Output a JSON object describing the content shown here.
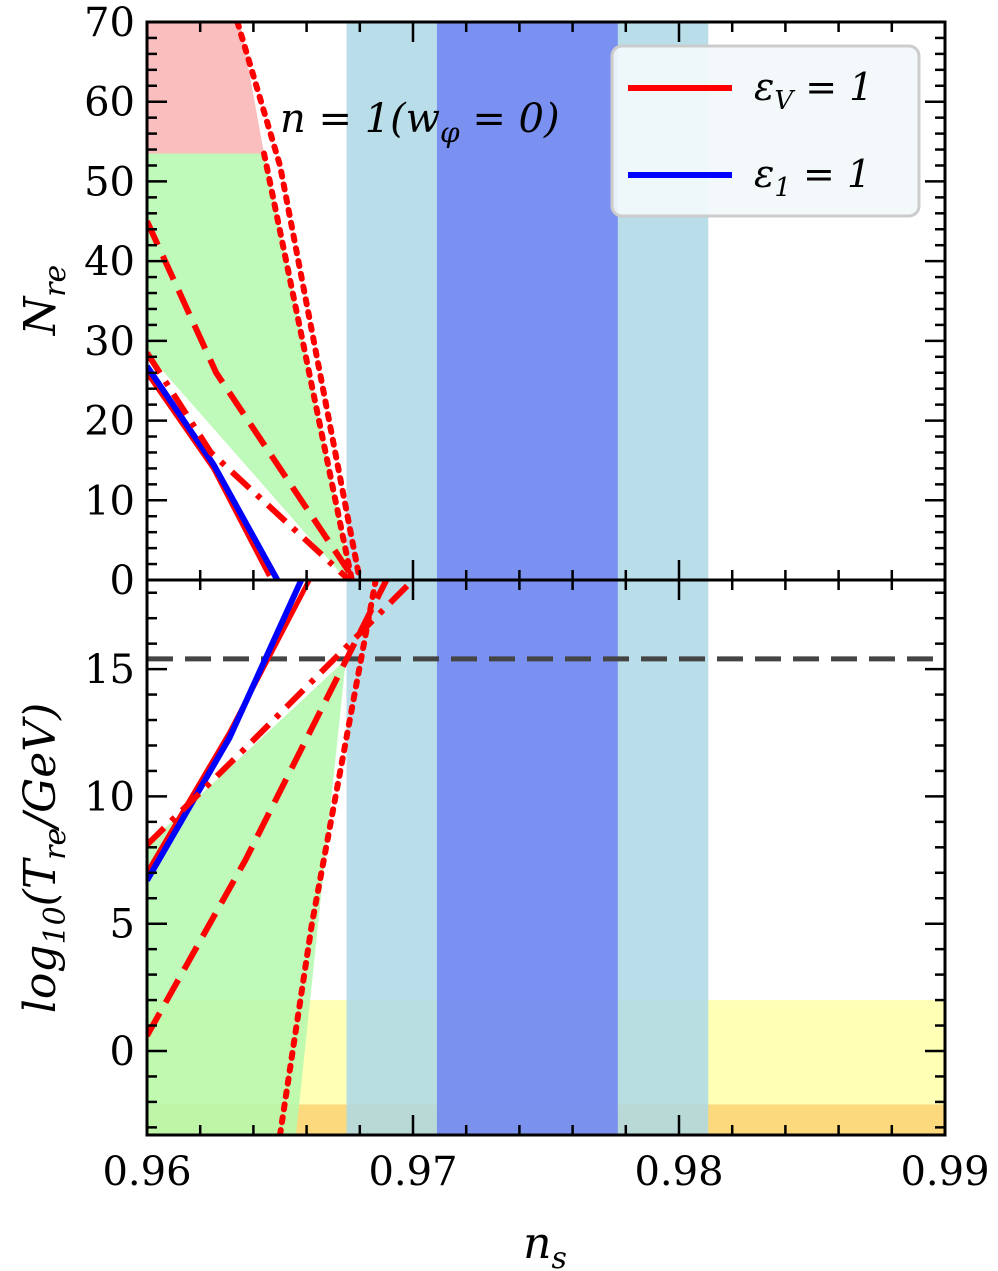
{
  "chart_data": [
    {
      "type": "line",
      "panel": "top",
      "xlim": [
        0.96,
        0.99
      ],
      "ylim": [
        0,
        70
      ],
      "ylabel": "N_re",
      "x_ticks": [
        0.96,
        0.97,
        0.98,
        0.99
      ],
      "y_ticks": [
        0,
        10,
        20,
        30,
        40,
        50,
        60,
        70
      ],
      "y_tick_labels": [
        "0",
        "10",
        "20",
        "30",
        "40",
        "50",
        "60",
        "70"
      ],
      "annotation": "n = 1(w_φ = 0)",
      "legend": {
        "placement": "top-right",
        "entries": [
          {
            "label": "ε_V = 1",
            "color": "#ff0000"
          },
          {
            "label": "ε_1 = 1",
            "color": "#0000ff"
          }
        ]
      },
      "bands": [
        {
          "x": [
            0.9675,
            0.9811
          ],
          "color": "#add8e6"
        },
        {
          "x": [
            0.9709,
            0.9777
          ],
          "color": "#6f84f2"
        }
      ],
      "regions": [
        {
          "color": "#f9b3b3",
          "points": [
            [
              0.96,
              70
            ],
            [
              0.9635,
              70
            ],
            [
              0.9644,
              53.5
            ],
            [
              0.96,
              53.5
            ]
          ]
        },
        {
          "color": "#b4f9ae",
          "points": [
            [
              0.96,
              53.5
            ],
            [
              0.9644,
              53.5
            ],
            [
              0.9677,
              0
            ],
            [
              0.9675,
              0
            ],
            [
              0.96,
              28.5
            ]
          ]
        }
      ],
      "series": [
        {
          "color": "#ff0000",
          "style": "solid",
          "width": 5,
          "x": [
            0.96,
            0.9625,
            0.9646
          ],
          "y": [
            26,
            14,
            0.5
          ]
        },
        {
          "color": "#0000ff",
          "style": "solid",
          "width": 6,
          "x": [
            0.96,
            0.9625,
            0.9649
          ],
          "y": [
            26.8,
            14.5,
            0
          ]
        },
        {
          "color": "#ff0000",
          "style": "dashdot",
          "width": 6,
          "x": [
            0.96,
            0.9624,
            0.9676
          ],
          "y": [
            28.5,
            16,
            0
          ]
        },
        {
          "color": "#ff0000",
          "style": "dashed",
          "width": 6,
          "x": [
            0.96,
            0.9626,
            0.9678
          ],
          "y": [
            45,
            26,
            0
          ]
        },
        {
          "color": "#ff0000",
          "style": "dotted",
          "width": 6,
          "x": [
            0.9634,
            0.965,
            0.968
          ],
          "y": [
            70,
            52,
            0
          ]
        },
        {
          "color": "#ff0000",
          "style": "dotted",
          "width": 6,
          "x": [
            0.9644,
            0.9677
          ],
          "y": [
            53.5,
            0
          ]
        }
      ]
    },
    {
      "type": "line",
      "panel": "bottom",
      "xlim": [
        0.96,
        0.99
      ],
      "ylim": [
        -3.3,
        18.5
      ],
      "ylabel": "log10(T_re/GeV)",
      "xlabel": "n_s",
      "x_ticks": [
        0.96,
        0.97,
        0.98,
        0.99
      ],
      "x_tick_labels": [
        "0.96",
        "0.97",
        "0.98",
        "0.99"
      ],
      "y_ticks": [
        0,
        5,
        10,
        15
      ],
      "y_tick_labels": [
        "0",
        "5",
        "10",
        "15"
      ],
      "hline": {
        "y": 15.4,
        "color": "#444444",
        "style": "dashed"
      },
      "bands": [
        {
          "x": [
            0.9675,
            0.9811
          ],
          "color": "#add8e6"
        },
        {
          "x": [
            0.9709,
            0.9777
          ],
          "color": "#6f84f2"
        }
      ],
      "horizontal_bands": [
        {
          "y": [
            -2.1,
            2.0
          ],
          "color": "#ffffa8"
        },
        {
          "y": [
            -3.3,
            -2.1
          ],
          "color": "#fdd266"
        }
      ],
      "regions": [
        {
          "color": "#b4f9ae",
          "points": [
            [
              0.96,
              8.1
            ],
            [
              0.9675,
              15.4
            ],
            [
              0.9675,
              15.6
            ],
            [
              0.9656,
              -3.3
            ],
            [
              0.96,
              -3.3
            ]
          ]
        }
      ],
      "series": [
        {
          "color": "#ff0000",
          "style": "solid",
          "width": 5,
          "x": [
            0.96,
            0.9631,
            0.9661
          ],
          "y": [
            7.0,
            12.5,
            18.5
          ]
        },
        {
          "color": "#0000ff",
          "style": "solid",
          "width": 6,
          "x": [
            0.96,
            0.9631,
            0.9658
          ],
          "y": [
            6.7,
            12.3,
            18.5
          ]
        },
        {
          "color": "#ff0000",
          "style": "dashdot",
          "width": 6,
          "x": [
            0.96,
            0.9638,
            0.97
          ],
          "y": [
            8.1,
            12.0,
            18.5
          ]
        },
        {
          "color": "#ff0000",
          "style": "dashed",
          "width": 6,
          "x": [
            0.96,
            0.9637,
            0.969
          ],
          "y": [
            0.6,
            7.5,
            18.5
          ]
        },
        {
          "color": "#ff0000",
          "style": "dotted",
          "width": 6,
          "x": [
            0.965,
            0.9662,
            0.9686
          ],
          "y": [
            -3.3,
            5.0,
            18.5
          ]
        }
      ]
    }
  ],
  "labels": {
    "top_ylabel_main": "N",
    "top_ylabel_sub": "re",
    "bottom_ylabel_pre": "log",
    "bottom_ylabel_sub": "10",
    "bottom_ylabel_mid": "(T",
    "bottom_ylabel_sub2": "re",
    "bottom_ylabel_post": "/GeV)",
    "xlabel_main": "n",
    "xlabel_sub": "s",
    "annot_a": "n = 1(w",
    "annot_sub": "φ",
    "annot_b": " = 0)",
    "legend_1_main": "ε",
    "legend_1_sub": "V",
    "legend_1_tail": " = 1",
    "legend_2_main": "ε",
    "legend_2_sub": "1",
    "legend_2_tail": " = 1"
  }
}
